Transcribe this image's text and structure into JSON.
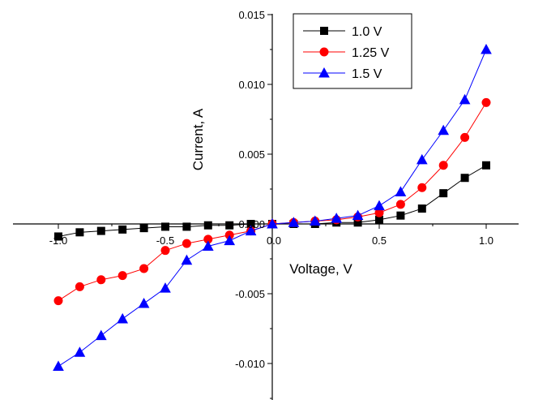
{
  "chart_data": {
    "type": "line",
    "xlabel": "Voltage, V",
    "ylabel": "Current, A",
    "xlim": [
      -1.2,
      1.2
    ],
    "ylim": [
      -0.0115,
      0.0155
    ],
    "x_ticks": [
      -1.0,
      -0.5,
      0.0,
      0.5,
      1.0
    ],
    "x_tick_labels": [
      "-1.0",
      "-0.5",
      "0.0",
      "0.5",
      "1.0"
    ],
    "y_ticks": [
      -0.01,
      -0.005,
      0.0,
      0.005,
      0.01,
      0.015
    ],
    "y_tick_labels": [
      "-0.010",
      "-0.005",
      "0.000",
      "0.005",
      "0.010",
      "0.015"
    ],
    "grid": false,
    "legend_position": "top-right",
    "x": [
      -1.0,
      -0.9,
      -0.8,
      -0.7,
      -0.6,
      -0.5,
      -0.4,
      -0.3,
      -0.2,
      -0.1,
      0.0,
      0.1,
      0.2,
      0.3,
      0.4,
      0.5,
      0.6,
      0.7,
      0.8,
      0.9,
      1.0
    ],
    "series": [
      {
        "name": "1.0 V",
        "color": "#000000",
        "marker": "square",
        "values": [
          -0.0009,
          -0.0006,
          -0.0005,
          -0.0004,
          -0.0003,
          -0.0002,
          -0.0002,
          -0.0001,
          -0.0001,
          0.0,
          0.0,
          0.0,
          0.0,
          0.0001,
          0.0001,
          0.0003,
          0.0006,
          0.0011,
          0.0022,
          0.0033,
          0.0042
        ]
      },
      {
        "name": "1.25 V",
        "color": "#ff0000",
        "marker": "circle",
        "values": [
          -0.0055,
          -0.0045,
          -0.004,
          -0.0037,
          -0.0032,
          -0.0019,
          -0.0014,
          -0.0011,
          -0.0008,
          -0.0005,
          0.0,
          0.0001,
          0.0002,
          0.0003,
          0.0005,
          0.0008,
          0.0014,
          0.0026,
          0.0042,
          0.0062,
          0.0087
        ]
      },
      {
        "name": "1.5 V",
        "color": "#0000ff",
        "marker": "triangle",
        "values": [
          -0.0102,
          -0.0092,
          -0.008,
          -0.0068,
          -0.0057,
          -0.0046,
          -0.0026,
          -0.0016,
          -0.0012,
          -0.0005,
          0.0,
          0.0001,
          0.0002,
          0.0004,
          0.0006,
          0.0013,
          0.0023,
          0.0046,
          0.0067,
          0.0089,
          0.0125
        ]
      }
    ]
  }
}
